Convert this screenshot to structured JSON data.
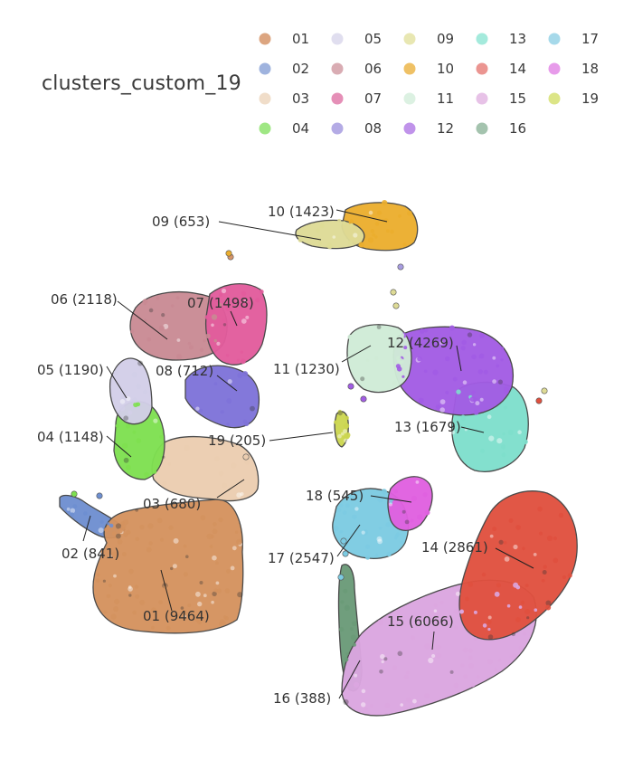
{
  "chart_data": {
    "type": "scatter",
    "title": "",
    "legend": {
      "title": "clusters_custom_19",
      "placement": "top-right",
      "entries": [
        {
          "name": "01",
          "color": "#D6956A"
        },
        {
          "name": "02",
          "color": "#8EA6D8"
        },
        {
          "name": "03",
          "color": "#EDD7C0"
        },
        {
          "name": "04",
          "color": "#8EE36E"
        },
        {
          "name": "05",
          "color": "#DBD8EC"
        },
        {
          "name": "06",
          "color": "#D29EA6"
        },
        {
          "name": "07",
          "color": "#E07BAA"
        },
        {
          "name": "08",
          "color": "#A79CE0"
        },
        {
          "name": "09",
          "color": "#E4E3A4"
        },
        {
          "name": "10",
          "color": "#ECB64A"
        },
        {
          "name": "11",
          "color": "#D6EEDD"
        },
        {
          "name": "12",
          "color": "#B580E6"
        },
        {
          "name": "13",
          "color": "#94E6D6"
        },
        {
          "name": "14",
          "color": "#E8837E"
        },
        {
          "name": "15",
          "color": "#E3B7E3"
        },
        {
          "name": "16",
          "color": "#94B8A0"
        },
        {
          "name": "17",
          "color": "#96D2E6"
        },
        {
          "name": "18",
          "color": "#E38AE6"
        },
        {
          "name": "19",
          "color": "#D6E072"
        }
      ]
    },
    "clusters": [
      {
        "id": "01",
        "count": 9464,
        "label": "01 (9464)",
        "color": "#D4925E"
      },
      {
        "id": "02",
        "count": 841,
        "label": "02 (841)",
        "color": "#6E8FD0"
      },
      {
        "id": "03",
        "count": 680,
        "label": "03 (680)",
        "color": "#EBCDB0"
      },
      {
        "id": "04",
        "count": 1148,
        "label": "04 (1148)",
        "color": "#7EE050"
      },
      {
        "id": "05",
        "count": 1190,
        "label": "05 (1190)",
        "color": "#D2CEE8"
      },
      {
        "id": "06",
        "count": 2118,
        "label": "06 (2118)",
        "color": "#C98A94"
      },
      {
        "id": "07",
        "count": 1498,
        "label": "07 (1498)",
        "color": "#E25C9C"
      },
      {
        "id": "08",
        "count": 712,
        "label": "08 (712)",
        "color": "#7E72D8"
      },
      {
        "id": "09",
        "count": 653,
        "label": "09 (653)",
        "color": "#DEDB96"
      },
      {
        "id": "10",
        "count": 1423,
        "label": "10 (1423)",
        "color": "#EBAE2E"
      },
      {
        "id": "11",
        "count": 1230,
        "label": "11 (1230)",
        "color": "#CFEBD6"
      },
      {
        "id": "12",
        "count": 4269,
        "label": "12 (4269)",
        "color": "#A25CE4"
      },
      {
        "id": "13",
        "count": 1679,
        "label": "13 (1679)",
        "color": "#7EDFCC"
      },
      {
        "id": "14",
        "count": 2861,
        "label": "14 (2861)",
        "color": "#E0503E"
      },
      {
        "id": "15",
        "count": 6066,
        "label": "15 (6066)",
        "color": "#DBA6E0"
      },
      {
        "id": "16",
        "count": 388,
        "label": "16 (388)",
        "color": "#6A9A78"
      },
      {
        "id": "17",
        "count": 2547,
        "label": "17 (2547)",
        "color": "#7CCBE2"
      },
      {
        "id": "18",
        "count": 545,
        "label": "18 (545)",
        "color": "#E060E0"
      },
      {
        "id": "19",
        "count": 205,
        "label": "19 (205)",
        "color": "#CCD650"
      }
    ],
    "axes": "none",
    "grid": false
  }
}
